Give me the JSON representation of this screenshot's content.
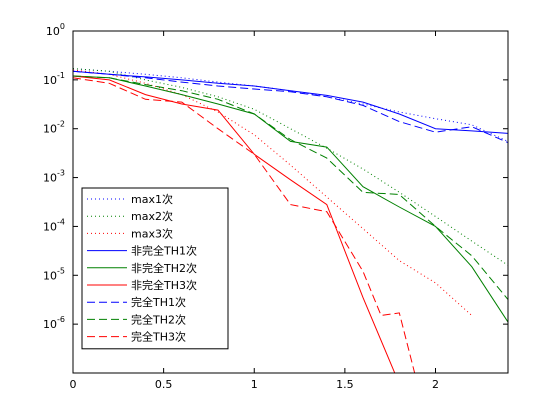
{
  "chart_data": {
    "type": "line",
    "xlim": [
      0,
      2.4
    ],
    "ylim": [
      1e-07,
      1
    ],
    "yscale": "log",
    "grid": false,
    "legend_position": "bottom-left",
    "x_ticks": [
      0,
      0.5,
      1,
      1.5,
      2
    ],
    "x_tick_labels": [
      "0",
      "0.5",
      "1",
      "1.5",
      "2"
    ],
    "y_ticks": [
      1e-06,
      1e-05,
      0.0001,
      0.001,
      0.01,
      0.1,
      1
    ],
    "y_tick_labels": [
      {
        "base": "10",
        "exp": "-6"
      },
      {
        "base": "10",
        "exp": "-5"
      },
      {
        "base": "10",
        "exp": "-4"
      },
      {
        "base": "10",
        "exp": "-3"
      },
      {
        "base": "10",
        "exp": "-2"
      },
      {
        "base": "10",
        "exp": "-1"
      },
      {
        "base": "10",
        "exp": "0"
      }
    ],
    "series": [
      {
        "name": "max1次",
        "color": "#0000ff",
        "style": "dotted",
        "x": [
          0,
          0.2,
          0.4,
          0.6,
          0.8,
          1.0,
          1.2,
          1.4,
          1.6,
          1.8,
          2.0,
          2.2,
          2.4
        ],
        "y": [
          0.17,
          0.15,
          0.13,
          0.11,
          0.09,
          0.075,
          0.06,
          0.045,
          0.032,
          0.022,
          0.016,
          0.012,
          0.0055
        ]
      },
      {
        "name": "max2次",
        "color": "#008000",
        "style": "dotted",
        "x": [
          0,
          0.2,
          0.4,
          0.6,
          0.8,
          1.0,
          1.2,
          1.4,
          1.6,
          1.8,
          2.0,
          2.2,
          2.4
        ],
        "y": [
          0.17,
          0.15,
          0.1,
          0.07,
          0.045,
          0.025,
          0.01,
          0.004,
          0.0015,
          0.0005,
          0.00016,
          5e-05,
          1.6e-05
        ]
      },
      {
        "name": "max3次",
        "color": "#ff0000",
        "style": "dotted",
        "x": [
          0,
          0.2,
          0.4,
          0.6,
          0.8,
          1.0,
          1.2,
          1.4,
          1.6,
          1.8,
          2.0,
          2.2
        ],
        "y": [
          0.16,
          0.13,
          0.085,
          0.05,
          0.022,
          0.0075,
          0.0018,
          0.0004,
          9e-05,
          2e-05,
          7e-06,
          1.5e-06
        ]
      },
      {
        "name": "非完全TH1次",
        "color": "#0000ff",
        "style": "solid",
        "x": [
          0,
          0.2,
          0.4,
          0.6,
          0.8,
          1.0,
          1.2,
          1.4,
          1.6,
          1.8,
          2.0,
          2.2,
          2.4
        ],
        "y": [
          0.15,
          0.13,
          0.115,
          0.1,
          0.085,
          0.075,
          0.06,
          0.048,
          0.035,
          0.02,
          0.01,
          0.009,
          0.008
        ]
      },
      {
        "name": "非完全TH2次",
        "color": "#008000",
        "style": "solid",
        "x": [
          0,
          0.2,
          0.4,
          0.6,
          0.8,
          1.0,
          1.2,
          1.4,
          1.6,
          1.8,
          2.0,
          2.2,
          2.4
        ],
        "y": [
          0.12,
          0.11,
          0.075,
          0.05,
          0.032,
          0.02,
          0.0055,
          0.0042,
          0.00065,
          0.00025,
          0.0001,
          1.5e-05,
          1.1e-06
        ]
      },
      {
        "name": "非完全TH3次",
        "color": "#ff0000",
        "style": "solid",
        "x": [
          0,
          0.2,
          0.4,
          0.6,
          0.8,
          1.0,
          1.2,
          1.4,
          1.6,
          1.8
        ],
        "y": [
          0.12,
          0.1,
          0.05,
          0.032,
          0.024,
          0.003,
          0.0009,
          0.00028,
          3.5e-06,
          6e-08
        ]
      },
      {
        "name": "完全TH1次",
        "color": "#0000ff",
        "style": "dashed",
        "x": [
          0,
          0.2,
          0.4,
          0.6,
          0.8,
          1.0,
          1.2,
          1.4,
          1.6,
          1.8,
          2.0,
          2.2,
          2.4
        ],
        "y": [
          0.15,
          0.13,
          0.11,
          0.09,
          0.075,
          0.065,
          0.057,
          0.045,
          0.03,
          0.014,
          0.0085,
          0.011,
          0.0052
        ]
      },
      {
        "name": "完全TH2次",
        "color": "#008000",
        "style": "dashed",
        "x": [
          0,
          0.2,
          0.4,
          0.6,
          0.8,
          1.0,
          1.2,
          1.4,
          1.6,
          1.8,
          2.0,
          2.2,
          2.4
        ],
        "y": [
          0.12,
          0.11,
          0.08,
          0.06,
          0.04,
          0.02,
          0.006,
          0.0025,
          0.0005,
          0.00045,
          0.0001,
          2.5e-05,
          3.2e-06
        ]
      },
      {
        "name": "完全TH3次",
        "color": "#ff0000",
        "style": "dashed",
        "x": [
          0,
          0.2,
          0.4,
          0.6,
          0.8,
          1.0,
          1.2,
          1.4,
          1.6,
          1.7,
          1.8,
          1.9
        ],
        "y": [
          0.11,
          0.085,
          0.04,
          0.035,
          0.01,
          0.003,
          0.00028,
          0.0002,
          1.2e-05,
          1.5e-06,
          1.7e-06,
          6e-08
        ]
      }
    ]
  }
}
